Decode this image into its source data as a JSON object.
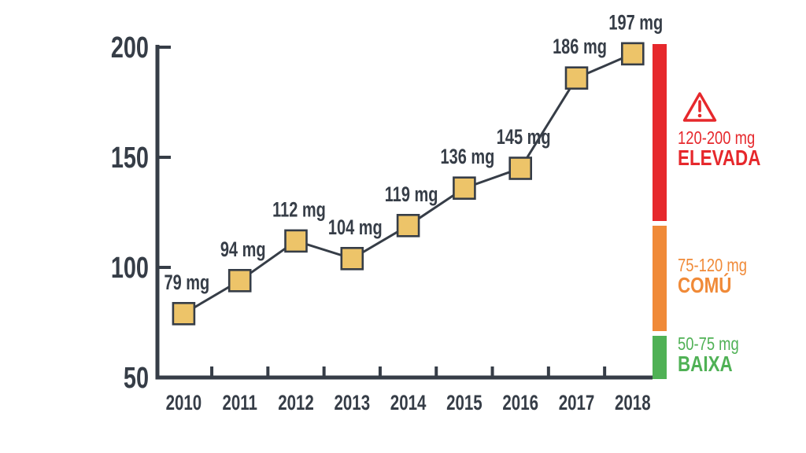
{
  "chart_data": {
    "type": "line",
    "x": [
      "2010",
      "2011",
      "2012",
      "2013",
      "2014",
      "2015",
      "2016",
      "2017",
      "2018"
    ],
    "values": [
      79,
      94,
      112,
      104,
      119,
      136,
      145,
      186,
      197
    ],
    "point_labels": [
      "79 mg",
      "94 mg",
      "112 mg",
      "104 mg",
      "119 mg",
      "136 mg",
      "145 mg",
      "186 mg",
      "197 mg"
    ],
    "unit": "mg",
    "title": "",
    "xlabel": "",
    "ylabel": "",
    "ylim": [
      50,
      200
    ],
    "yticks": [
      200,
      150,
      100,
      50
    ],
    "grid": false,
    "marker_style": "square",
    "legend_position": "right",
    "colors": {
      "marker_fill": "#edc469",
      "marker_stroke": "#363d47",
      "line": "#363d47",
      "axis": "#363d47",
      "text": "#363d47"
    },
    "zones": [
      {
        "range": "120-200 mg",
        "label": "ELEVADA",
        "color": "#e6282c",
        "icon": "warning-triangle"
      },
      {
        "range": "75-120 mg",
        "label": "COMÚ",
        "color": "#f08a38",
        "icon": ""
      },
      {
        "range": "50-75 mg",
        "label": "BAIXA",
        "color": "#4fb155",
        "icon": ""
      }
    ]
  }
}
